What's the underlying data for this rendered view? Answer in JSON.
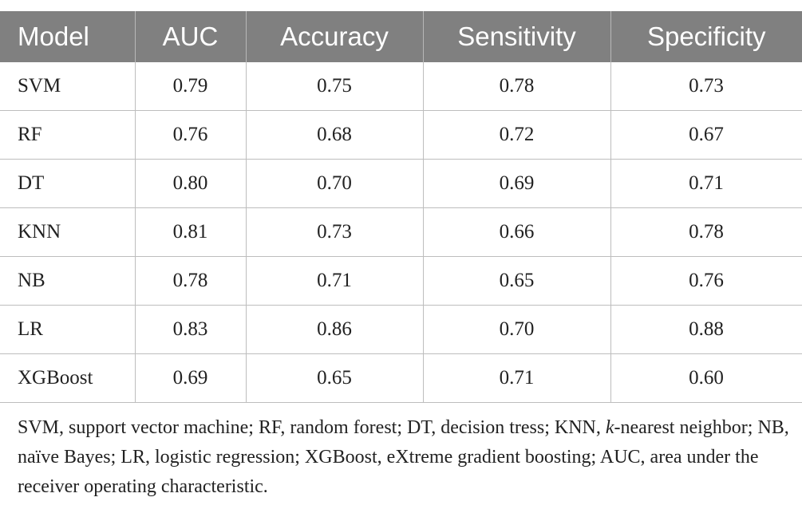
{
  "table": {
    "headers": [
      "Model",
      "AUC",
      "Accuracy",
      "Sensitivity",
      "Specificity"
    ],
    "rows": [
      [
        "SVM",
        "0.79",
        "0.75",
        "0.78",
        "0.73"
      ],
      [
        "RF",
        "0.76",
        "0.68",
        "0.72",
        "0.67"
      ],
      [
        "DT",
        "0.80",
        "0.70",
        "0.69",
        "0.71"
      ],
      [
        "KNN",
        "0.81",
        "0.73",
        "0.66",
        "0.78"
      ],
      [
        "NB",
        "0.78",
        "0.71",
        "0.65",
        "0.76"
      ],
      [
        "LR",
        "0.83",
        "0.86",
        "0.70",
        "0.88"
      ],
      [
        "XGBoost",
        "0.69",
        "0.65",
        "0.71",
        "0.60"
      ]
    ]
  },
  "footnote": {
    "part1": "SVM, support vector machine; RF, random forest; DT, decision tress; KNN, ",
    "italic_k": "k",
    "part2": "-nearest neighbor; NB, naïve Bayes; LR, logistic regression; XGBoost, eXtreme gradient boosting; AUC, area under the receiver operating characteristic."
  },
  "colors": {
    "header_background": "#808080",
    "header_text": "#ffffff",
    "grid_lines": "#bdbdbd",
    "body_text": "#222222"
  }
}
